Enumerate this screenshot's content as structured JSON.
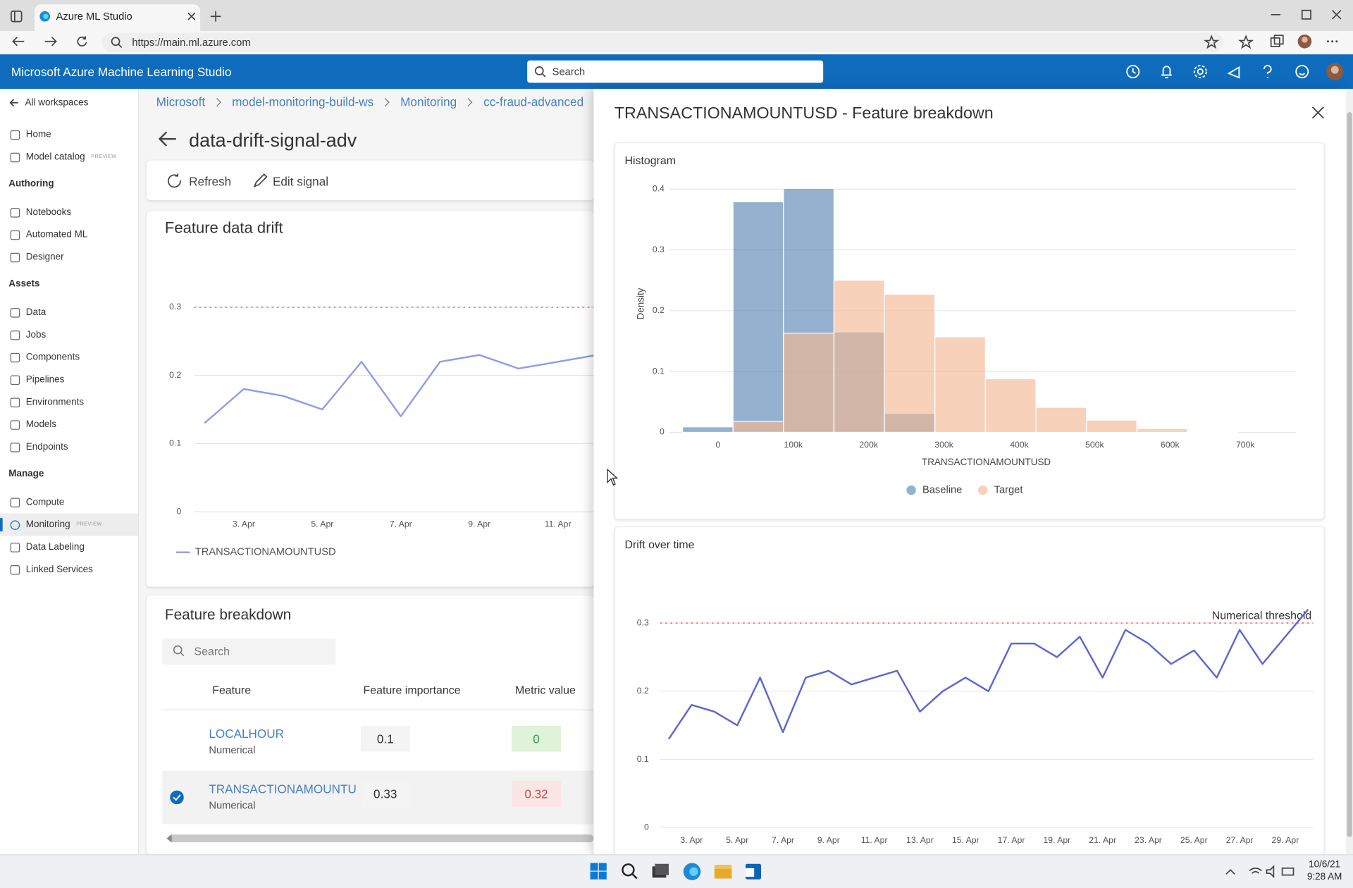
{
  "browser": {
    "tab_title": "Azure ML Studio",
    "url": "https://main.ml.azure.com"
  },
  "app": {
    "title": "Microsoft Azure Machine Learning Studio",
    "search_placeholder": "Search"
  },
  "sidebar": {
    "back": "All workspaces",
    "entries": [
      {
        "label": "Home"
      },
      {
        "label": "Model catalog",
        "badge": "PREVIEW"
      },
      {
        "section": "Authoring"
      },
      {
        "label": "Notebooks"
      },
      {
        "label": "Automated ML"
      },
      {
        "label": "Designer"
      },
      {
        "section": "Assets"
      },
      {
        "label": "Data"
      },
      {
        "label": "Jobs"
      },
      {
        "label": "Components"
      },
      {
        "label": "Pipelines"
      },
      {
        "label": "Environments"
      },
      {
        "label": "Models"
      },
      {
        "label": "Endpoints"
      },
      {
        "section": "Manage"
      },
      {
        "label": "Compute"
      },
      {
        "label": "Monitoring",
        "badge": "PREVIEW",
        "selected": true
      },
      {
        "label": "Data Labeling"
      },
      {
        "label": "Linked Services"
      }
    ]
  },
  "breadcrumb": [
    "Microsoft",
    "model-monitoring-build-ws",
    "Monitoring",
    "cc-fraud-advanced"
  ],
  "page": {
    "title": "data-drift-signal-adv",
    "actions": [
      "Refresh",
      "Edit signal"
    ]
  },
  "feature_breakdown": {
    "title": "Feature breakdown",
    "search_placeholder": "Search",
    "columns": [
      "Feature",
      "Feature importance",
      "Metric value"
    ],
    "rows": [
      {
        "feature": "LOCALHOUR",
        "type": "Numerical",
        "importance": "0.1",
        "metric": "0",
        "status": "pass"
      },
      {
        "feature": "TRANSACTIONAMOUNTU",
        "type": "Numerical",
        "importance": "0.33",
        "metric": "0.32",
        "status": "fail",
        "selected": true
      }
    ]
  },
  "panel": {
    "title": "TRANSACTIONAMOUNTUSD - Feature breakdown"
  },
  "taskbar": {
    "date": "10/6/21",
    "time": "9:28 AM"
  },
  "chart_data": [
    {
      "type": "line",
      "title": "Feature data drift",
      "categories": [
        null,
        "3. Apr",
        null,
        "5. Apr",
        null,
        "7. Apr",
        null,
        "9. Apr",
        null,
        "11. Apr",
        null
      ],
      "series": [
        {
          "name": "TRANSACTIONAMOUNTUSD",
          "color": "#8d9de6",
          "values": [
            0.13,
            0.18,
            0.17,
            0.15,
            0.22,
            0.14,
            0.22,
            0.23,
            0.21,
            0.22,
            0.23
          ]
        }
      ],
      "ylim": [
        0,
        0.33
      ],
      "yticks": [
        0,
        0.1,
        0.2,
        0.3
      ],
      "threshold": 0.3,
      "threshold_color": "#e8838a",
      "grid": true
    },
    {
      "type": "histogram",
      "title": "Histogram",
      "x_label": "TRANSACTIONAMOUNTUSD",
      "y_label": "Density",
      "bins": [
        -47000,
        20000,
        87000,
        154000,
        221000,
        288000,
        355000,
        422000,
        489000,
        556000,
        623000,
        690000,
        757000
      ],
      "series": [
        {
          "name": "Baseline",
          "color": "#5b88b5",
          "values": [
            0.009,
            0.379,
            0.401,
            0.165,
            0.031,
            0,
            0,
            0,
            0,
            0,
            0,
            0
          ]
        },
        {
          "name": "Target",
          "color": "#f2b994",
          "values": [
            0,
            0.018,
            0.163,
            0.25,
            0.227,
            0.157,
            0.088,
            0.041,
            0.02,
            0.006,
            0.001,
            0
          ]
        }
      ],
      "xlim": [
        -47000,
        765000
      ],
      "xticks": [
        0,
        {
          "value": 100000,
          "label": "100k"
        },
        {
          "value": 200000,
          "label": "200k"
        },
        {
          "value": 300000,
          "label": "300k"
        },
        {
          "value": 400000,
          "label": "400k"
        },
        {
          "value": 500000,
          "label": "500k"
        },
        {
          "value": 600000,
          "label": "600k"
        },
        {
          "value": 700000,
          "label": "700k"
        }
      ],
      "ylim": [
        0,
        0.41
      ],
      "yticks": [
        0,
        0.1,
        0.2,
        0.3,
        0.4
      ],
      "grid": true
    },
    {
      "type": "line",
      "title": "Drift over time",
      "categories": [
        null,
        "3. Apr",
        null,
        "5. Apr",
        null,
        "7. Apr",
        null,
        "9. Apr",
        null,
        "11. Apr",
        null,
        "13. Apr",
        null,
        "15. Apr",
        null,
        "17. Apr",
        null,
        "19. Apr",
        null,
        "21. Apr",
        null,
        "23. Apr",
        null,
        "25. Apr",
        null,
        "27. Apr",
        null,
        "29. Apr",
        null
      ],
      "series": [
        {
          "color": "#5a68cf",
          "values": [
            0.13,
            0.18,
            0.17,
            0.15,
            0.22,
            0.14,
            0.22,
            0.23,
            0.21,
            0.22,
            0.23,
            0.17,
            0.2,
            0.22,
            0.2,
            0.27,
            0.27,
            0.25,
            0.28,
            0.22,
            0.29,
            0.27,
            0.24,
            0.26,
            0.22,
            0.29,
            0.24,
            0.28,
            0.32
          ]
        }
      ],
      "ylim": [
        0,
        0.33
      ],
      "yticks": [
        0,
        0.1,
        0.2,
        0.3
      ],
      "threshold": 0.3,
      "threshold_label": "Numerical threshold",
      "threshold_color": "#e8838a",
      "grid": true
    }
  ]
}
